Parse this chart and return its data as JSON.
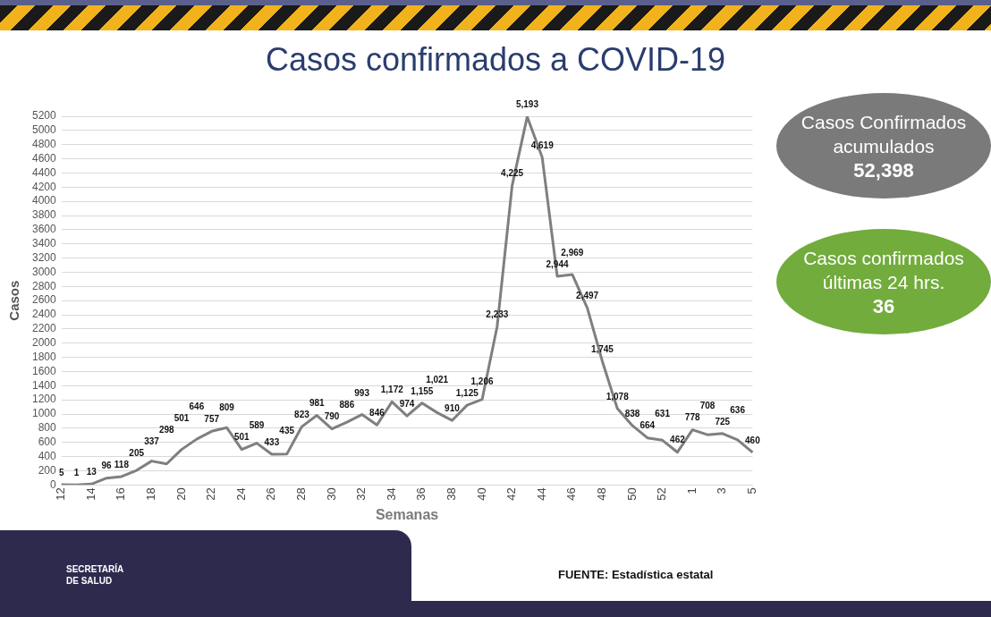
{
  "chart_data": {
    "type": "line",
    "title": "Casos confirmados a COVID-19",
    "xlabel": "Semanas",
    "ylabel": "Casos",
    "categories": [
      "12",
      null,
      "14",
      null,
      "16",
      null,
      "18",
      null,
      "20",
      null,
      "22",
      null,
      "24",
      null,
      "26",
      null,
      "28",
      null,
      "30",
      null,
      "32",
      null,
      "34",
      null,
      "36",
      null,
      "38",
      null,
      "40",
      null,
      "42",
      null,
      "44",
      null,
      "46",
      null,
      "48",
      null,
      "50",
      null,
      "52",
      null,
      "1",
      null,
      "3",
      null,
      "5"
    ],
    "series": [
      {
        "color": "#7f7f7f",
        "values": [
          5,
          1,
          13,
          96,
          118,
          205,
          337,
          298,
          501,
          646,
          757,
          809,
          501,
          589,
          433,
          435,
          823,
          981,
          790,
          886,
          993,
          846,
          1172,
          974,
          1155,
          1021,
          910,
          1125,
          1206,
          2233,
          4225,
          5193,
          4619,
          2944,
          2969,
          2497,
          1745,
          1078,
          838,
          664,
          631,
          462,
          778,
          708,
          725,
          636,
          460
        ]
      }
    ],
    "value_labels": [
      "5",
      "1",
      "13",
      "96",
      "118",
      "205",
      "337",
      "298",
      "501",
      "646",
      "757",
      "809",
      "501",
      "589",
      "433",
      "435",
      "823",
      "981",
      "790",
      "886",
      "993",
      "846",
      "1,172",
      "974",
      "1,155",
      "1,021",
      "910",
      "1,125",
      "1,206",
      "2,233",
      "4,225",
      "5,193",
      "4,619",
      "2,944",
      "2,969",
      "2,497",
      "1,745",
      "1,078",
      "838",
      "664",
      "631",
      "462",
      "778",
      "708",
      "725",
      "636",
      "460"
    ],
    "ylim": [
      0,
      5200
    ],
    "yticks": [
      0,
      200,
      400,
      600,
      800,
      1000,
      1200,
      1400,
      1600,
      1800,
      2000,
      2200,
      2400,
      2600,
      2800,
      3000,
      3200,
      3400,
      3600,
      3800,
      4000,
      4200,
      4400,
      4600,
      4800,
      5000,
      5200
    ],
    "grid": "y",
    "legend": false,
    "marker": "none",
    "line_style": "solid",
    "annotations": [
      "Casos Confirmados acumulados",
      "52,398",
      "Casos confirmados últimas 24 hrs.",
      "36",
      "SECRETARÍA DE SALUD",
      "FUENTE: Estadística estatal"
    ]
  }
}
